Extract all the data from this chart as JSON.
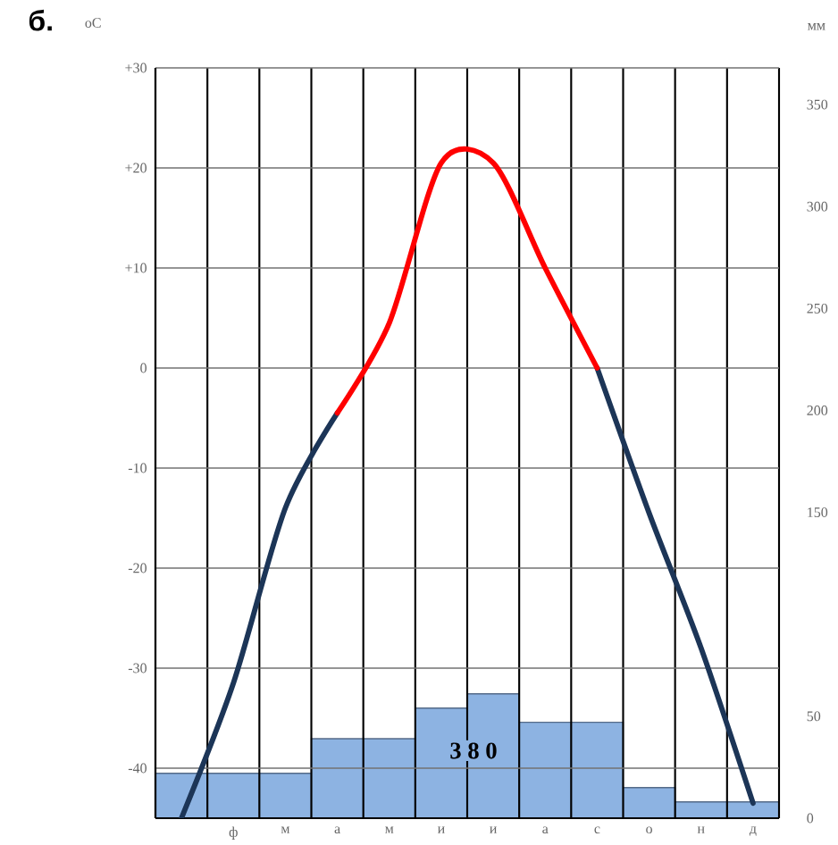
{
  "chart_data": {
    "type": "bar",
    "title": "б.",
    "ylabel": "оС",
    "y2label": "мм",
    "categories": [
      null,
      "ф",
      "м",
      "а",
      "м",
      "и",
      "и",
      "а",
      "с",
      "о",
      "н",
      "д"
    ],
    "series": [
      {
        "axis": "y2",
        "color": "#8db3e2",
        "values": [
          22,
          22,
          22,
          39,
          39,
          54,
          61,
          47,
          47,
          15,
          8,
          8
        ]
      },
      {
        "type": "line",
        "color": "#1c3557",
        "values": [
          -45,
          -31.5,
          -14,
          -4.5,
          null,
          null,
          null,
          null,
          0,
          -14.5,
          -28,
          -43.5
        ]
      },
      {
        "type": "line",
        "color": "#ff0000",
        "values": [
          null,
          null,
          null,
          -4.5,
          4.5,
          20.5,
          20.5,
          10,
          0,
          null,
          null,
          null
        ]
      }
    ],
    "ylim": [
      -45,
      30
    ],
    "yticks": [
      {
        "value": 30,
        "label": "+30"
      },
      {
        "value": 20,
        "label": "+20"
      },
      {
        "value": 10,
        "label": "+10"
      },
      0,
      -10,
      -20,
      -30,
      -40
    ],
    "y2lim": [
      0,
      368
    ],
    "y2ticks": [
      0,
      50,
      150,
      200,
      250,
      300,
      350
    ],
    "grid": true,
    "annotations": [
      "3 8 0"
    ]
  }
}
